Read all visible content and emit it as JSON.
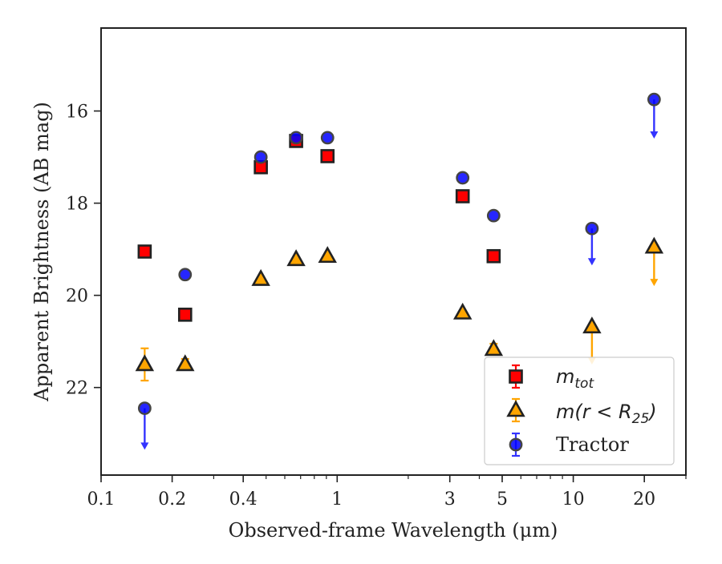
{
  "chart_data": {
    "type": "scatter",
    "xlabel": "Observed-frame Wavelength (μm)",
    "ylabel": "Apparent Brightness (AB mag)",
    "xscale": "log",
    "xlim": [
      0.1,
      30
    ],
    "ylim": [
      23.9,
      14.2
    ],
    "y_inverted": true,
    "grid": false,
    "legend_position": "lower-right",
    "x_ticks": [
      0.1,
      0.2,
      0.4,
      1,
      3,
      5,
      10,
      20
    ],
    "x_tick_labels": [
      "0.1",
      "0.2",
      "0.4",
      "1",
      "3",
      "5",
      "10",
      "20"
    ],
    "y_ticks": [
      16,
      18,
      20,
      22
    ],
    "y_tick_labels": [
      "16",
      "18",
      "20",
      "22"
    ],
    "series": [
      {
        "name": "m_tot",
        "legend_label_main": "m",
        "legend_label_sub": "tot",
        "marker": "square",
        "color": "#ff0000",
        "edge_color": "#222222",
        "errorbar_color": "#ff0000",
        "points": [
          {
            "x": 0.153,
            "y": 19.05
          },
          {
            "x": 0.227,
            "y": 20.42
          },
          {
            "x": 0.475,
            "y": 17.22
          },
          {
            "x": 0.67,
            "y": 16.65
          },
          {
            "x": 0.91,
            "y": 16.98
          },
          {
            "x": 3.4,
            "y": 17.85
          },
          {
            "x": 4.6,
            "y": 19.15
          }
        ]
      },
      {
        "name": "m(r < R25)",
        "legend_label_main": "m(r < R",
        "legend_label_sub": "25",
        "legend_label_end": ")",
        "marker": "triangle",
        "color": "#ffa500",
        "edge_color": "#222222",
        "errorbar_color": "#ffa500",
        "points": [
          {
            "x": 0.153,
            "y": 21.5,
            "yerr": 0.35
          },
          {
            "x": 0.227,
            "y": 21.5,
            "yerr": 0.12
          },
          {
            "x": 0.475,
            "y": 19.65
          },
          {
            "x": 0.67,
            "y": 19.22
          },
          {
            "x": 0.91,
            "y": 19.15
          },
          {
            "x": 3.4,
            "y": 20.38
          },
          {
            "x": 4.6,
            "y": 21.17,
            "yerr": 0.12
          },
          {
            "x": 12.0,
            "y": 20.68,
            "upper_limit_to": 21.5
          },
          {
            "x": 22.0,
            "y": 18.95,
            "upper_limit_to": 19.8
          }
        ]
      },
      {
        "name": "Tractor",
        "marker": "circle",
        "color": "#0000ff",
        "edge_color": "#444444",
        "errorbar_color": "#3333ff",
        "points": [
          {
            "x": 0.153,
            "y": 22.45,
            "upper_limit_to": 23.35
          },
          {
            "x": 0.227,
            "y": 19.55
          },
          {
            "x": 0.475,
            "y": 17.0
          },
          {
            "x": 0.67,
            "y": 16.58
          },
          {
            "x": 0.91,
            "y": 16.58
          },
          {
            "x": 3.4,
            "y": 17.45
          },
          {
            "x": 4.6,
            "y": 18.27
          },
          {
            "x": 12.0,
            "y": 18.55,
            "upper_limit_to": 19.35
          },
          {
            "x": 22.0,
            "y": 15.75,
            "upper_limit_to": 16.6
          }
        ]
      }
    ]
  }
}
